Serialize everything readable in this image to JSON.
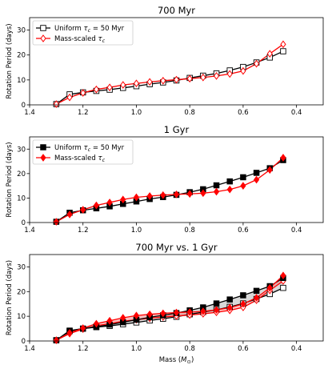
{
  "chart_data": [
    {
      "type": "line",
      "title": "700 Myr",
      "ylabel": "Rotation Period (days)",
      "xlabel": "",
      "xlim": [
        1.4,
        0.3
      ],
      "ylim": [
        0,
        35
      ],
      "xticks": [
        1.4,
        1.2,
        1.0,
        0.8,
        0.6,
        0.4
      ],
      "xtick_labels": [
        "1.4",
        "1.2",
        "1.0",
        "0.8",
        "0.6",
        "0.4"
      ],
      "yticks": [
        0,
        10,
        20,
        30
      ],
      "ytick_labels": [
        "0",
        "10",
        "20",
        "30"
      ],
      "legend_position": "top-left",
      "x": [
        1.3,
        1.25,
        1.2,
        1.15,
        1.1,
        1.05,
        1.0,
        0.95,
        0.9,
        0.85,
        0.8,
        0.75,
        0.7,
        0.65,
        0.6,
        0.55,
        0.5,
        0.45
      ],
      "series": [
        {
          "name_prefix": "Uniform ",
          "name_math": "τc = 50 Myr",
          "marker": "square-open",
          "color": "#000000",
          "values": [
            0.3,
            4.2,
            5.0,
            5.6,
            6.1,
            6.8,
            7.5,
            8.3,
            9.0,
            9.8,
            10.8,
            11.7,
            12.6,
            13.8,
            15.2,
            17.0,
            19.0,
            21.5
          ]
        },
        {
          "name_prefix": "Mass-scaled ",
          "name_math": "τc",
          "marker": "diamond-open",
          "color": "#ff0000",
          "values": [
            0.3,
            3.0,
            4.8,
            6.2,
            7.0,
            8.0,
            8.6,
            9.2,
            9.7,
            10.1,
            10.5,
            11.0,
            11.6,
            12.4,
            13.6,
            16.5,
            20.5,
            24.3
          ]
        }
      ]
    },
    {
      "type": "line",
      "title": "1 Gyr",
      "ylabel": "Rotation Period (days)",
      "xlabel": "",
      "xlim": [
        1.4,
        0.3
      ],
      "ylim": [
        0,
        35
      ],
      "xticks": [
        1.4,
        1.2,
        1.0,
        0.8,
        0.6,
        0.4
      ],
      "xtick_labels": [
        "1.4",
        "1.2",
        "1.0",
        "0.8",
        "0.6",
        "0.4"
      ],
      "yticks": [
        0,
        10,
        20,
        30
      ],
      "ytick_labels": [
        "0",
        "10",
        "20",
        "30"
      ],
      "legend_position": "top-left",
      "x": [
        1.3,
        1.25,
        1.2,
        1.15,
        1.1,
        1.05,
        1.0,
        0.95,
        0.9,
        0.85,
        0.8,
        0.75,
        0.7,
        0.65,
        0.6,
        0.55,
        0.5,
        0.45
      ],
      "series": [
        {
          "name_prefix": "Uniform ",
          "name_math": "τc = 50 Myr",
          "marker": "square-filled",
          "color": "#000000",
          "values": [
            0.3,
            4.0,
            5.0,
            5.8,
            6.6,
            7.6,
            8.6,
            9.6,
            10.4,
            11.3,
            12.4,
            13.6,
            15.2,
            16.8,
            18.5,
            20.3,
            22.2,
            25.5
          ]
        },
        {
          "name_prefix": "Mass-scaled ",
          "name_math": "τc",
          "marker": "diamond-filled",
          "color": "#ff0000",
          "values": [
            0.3,
            3.3,
            5.2,
            7.0,
            8.2,
            9.4,
            10.3,
            10.8,
            11.2,
            11.5,
            11.7,
            12.0,
            12.6,
            13.5,
            15.0,
            17.5,
            21.5,
            26.5
          ]
        }
      ]
    },
    {
      "type": "line",
      "title": "700 Myr vs. 1 Gyr",
      "ylabel": "Rotation Period (days)",
      "xlabel": "Mass (M⊙)",
      "xlim": [
        1.4,
        0.3
      ],
      "ylim": [
        0,
        35
      ],
      "xticks": [
        1.4,
        1.2,
        1.0,
        0.8,
        0.6,
        0.4
      ],
      "xtick_labels": [
        "1.4",
        "1.2",
        "1.0",
        "0.8",
        "0.6",
        "0.4"
      ],
      "yticks": [
        0,
        10,
        20,
        30
      ],
      "ytick_labels": [
        "0",
        "10",
        "20",
        "30"
      ],
      "x": [
        1.3,
        1.25,
        1.2,
        1.15,
        1.1,
        1.05,
        1.0,
        0.95,
        0.9,
        0.85,
        0.8,
        0.75,
        0.7,
        0.65,
        0.6,
        0.55,
        0.5,
        0.45
      ],
      "bands": [
        {
          "color": "#aaaaaa",
          "lower_series": 0,
          "upper_series": 2
        },
        {
          "color": "#ff7070",
          "lower_series": 1,
          "upper_series": 3
        }
      ],
      "series": [
        {
          "marker": "square-open",
          "color": "#000000",
          "values": [
            0.3,
            4.2,
            5.0,
            5.6,
            6.1,
            6.8,
            7.5,
            8.3,
            9.0,
            9.8,
            10.8,
            11.7,
            12.6,
            13.8,
            15.2,
            17.0,
            19.0,
            21.5
          ]
        },
        {
          "marker": "diamond-open",
          "color": "#ff0000",
          "values": [
            0.3,
            3.0,
            4.8,
            6.2,
            7.0,
            8.0,
            8.6,
            9.2,
            9.7,
            10.1,
            10.5,
            11.0,
            11.6,
            12.4,
            13.6,
            16.5,
            20.5,
            24.3
          ]
        },
        {
          "marker": "square-filled",
          "color": "#000000",
          "values": [
            0.3,
            4.0,
            5.0,
            5.8,
            6.6,
            7.6,
            8.6,
            9.6,
            10.4,
            11.3,
            12.4,
            13.6,
            15.2,
            16.8,
            18.5,
            20.3,
            22.2,
            25.5
          ]
        },
        {
          "marker": "diamond-filled",
          "color": "#ff0000",
          "values": [
            0.3,
            3.3,
            5.2,
            7.0,
            8.2,
            9.4,
            10.3,
            10.8,
            11.2,
            11.5,
            11.7,
            12.0,
            12.6,
            13.5,
            15.0,
            17.5,
            21.5,
            26.5
          ]
        }
      ]
    }
  ]
}
